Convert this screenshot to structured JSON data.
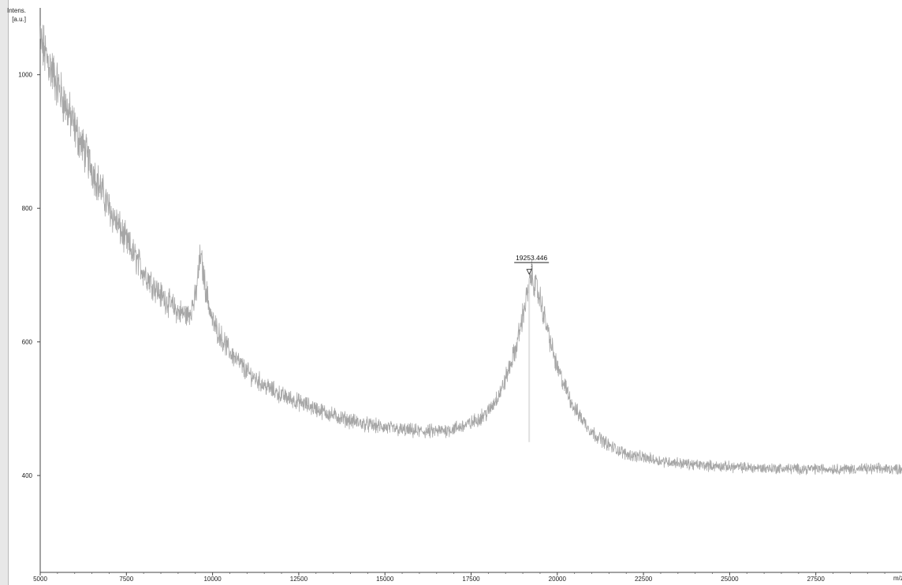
{
  "chart_data": {
    "type": "line",
    "ylabel_line1": "Intens.",
    "ylabel_line2": "[a.u.]",
    "xlabel": "m/z",
    "xlim": [
      5000,
      30000
    ],
    "ylim": [
      255,
      1100
    ],
    "x_ticks": [
      5000,
      7500,
      10000,
      12500,
      15000,
      17500,
      20000,
      22500,
      25000,
      27500
    ],
    "x_tick_labels": [
      "5000",
      "7500",
      "10000",
      "12500",
      "15000",
      "17500",
      "20000",
      "22500",
      "25000",
      "27500"
    ],
    "y_ticks": [
      400,
      600,
      800,
      1000
    ],
    "y_tick_labels": [
      "400",
      "600",
      "800",
      "1000"
    ],
    "grid": false,
    "line_color": "#a6a6a6",
    "series": [
      {
        "x": [
          5000,
          5500,
          6000,
          6500,
          7000,
          7500,
          8000,
          8500,
          9000,
          9300,
          9500,
          9650,
          9800,
          10000,
          10500,
          11000,
          11500,
          12000,
          12500,
          13000,
          13500,
          14000,
          14500,
          15000,
          15500,
          16000,
          16500,
          17000,
          17500,
          18000,
          18400,
          18800,
          19000,
          19250,
          19500,
          19800,
          20000,
          20500,
          21000,
          21500,
          22000,
          23000,
          24000,
          25000,
          26000,
          27000,
          28000,
          29000,
          30000
        ],
        "values": [
          1050,
          985,
          920,
          860,
          800,
          750,
          705,
          670,
          645,
          640,
          665,
          730,
          680,
          630,
          585,
          555,
          535,
          520,
          510,
          500,
          490,
          482,
          476,
          472,
          468,
          466,
          466,
          470,
          478,
          495,
          530,
          590,
          640,
          700,
          665,
          600,
          560,
          500,
          465,
          445,
          432,
          422,
          416,
          413,
          411,
          410,
          410,
          410,
          410
        ]
      }
    ],
    "annotations": [
      {
        "text": "19253.446",
        "x": 19253.446,
        "y": 705
      }
    ]
  }
}
